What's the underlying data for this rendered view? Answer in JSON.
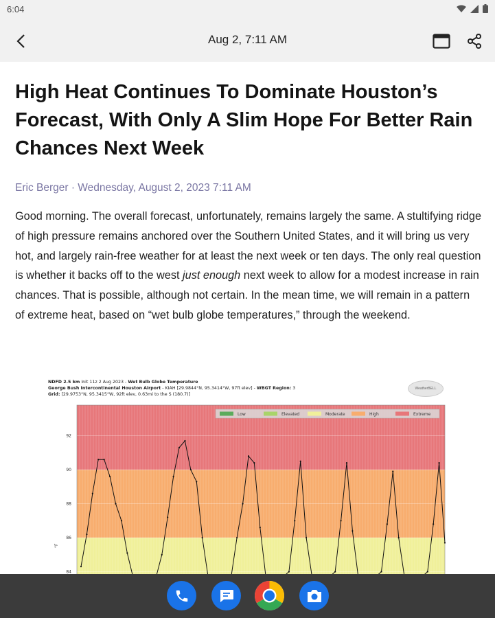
{
  "status": {
    "time": "6:04"
  },
  "app_bar": {
    "title": "Aug 2, 7:11 AM"
  },
  "article": {
    "headline": "High Heat Continues To Dominate Houston’s Forecast, With Only A Slim Hope For Better Rain Chances Next Week",
    "byline": "Eric Berger · Wednesday, August 2, 2023 7:11 AM",
    "p1": "Good morning. The overall forecast, unfortunately, remains largely the same. A stultifying ridge of high pressure remains anchored over the Southern United States, and it will bring us very hot, and largely rain-free weather for at least the next week or ten days. The only real question is whether it backs off to the west ",
    "p1_em": "just enough",
    "p1_end": " next week to allow for a modest increase in rain chances. That is possible, although not certain. In the mean time, we will remain in a pattern of extreme heat, based on “wet bulb globe temperatures,” through the weekend."
  },
  "figure": {
    "line1_bold": "NDFD 2.5 km",
    "line1_rest": " Init 11z 2 Aug 2023 - ",
    "line1_bold2": "Wet Bulb Globe Temperature",
    "line2_bold": "George Bush Intercontinental Houston Airport",
    "line2_rest": " - KIAH [29.9844°N, 95.3414°W, 97ft elev] - ",
    "line2_bold2": "WBGT Region:",
    "line2_end": " 3",
    "line3_bold": "Grid:",
    "line3_rest": " [29.9753°N, 95.3415°W, 92ft elev, 0.63mi to the S (180.7)]",
    "logo_text": "WeatherBELL"
  },
  "chart_data": {
    "type": "line",
    "ylabel": "°F",
    "y_ticks": [
      84,
      86,
      88,
      90,
      92
    ],
    "y_visible_range": [
      83.7,
      93.8
    ],
    "legend": [
      "Low",
      "Elevated",
      "Moderate",
      "High",
      "Extreme"
    ],
    "legend_position": "top-right",
    "colors": {
      "Low": "#5cab5c",
      "Elevated": "#a9d46a",
      "Moderate": "#f0f09a",
      "High": "#f8ad6e",
      "Extreme": "#e7777a",
      "line": "#111111"
    },
    "zones": [
      {
        "name": "Moderate",
        "from": 83.7,
        "to": 86
      },
      {
        "name": "High",
        "from": 86,
        "to": 90
      },
      {
        "name": "Extreme",
        "from": 90,
        "to": 93.8
      }
    ],
    "series": [
      {
        "values": [
          84.3,
          86.2,
          88.6,
          90.6,
          90.6,
          89.6,
          88.0,
          87.0,
          85.1,
          83.7,
          83.7,
          83.7,
          83.7,
          83.7,
          85.0,
          87.2,
          89.6,
          91.3,
          91.7,
          90.0,
          89.3,
          86.0,
          83.7,
          83.7,
          83.7,
          83.7,
          83.7,
          86.0,
          88.0,
          90.8,
          90.4,
          86.6,
          83.7,
          83.7,
          83.7,
          83.7,
          84.0,
          87.0,
          90.5,
          86.0,
          83.7,
          83.7,
          83.7,
          83.7,
          84.0,
          87.0,
          90.4,
          86.4,
          83.7,
          83.7,
          83.7,
          83.7,
          84.0,
          86.8,
          89.9,
          86.0,
          83.7,
          83.7,
          83.7,
          83.7,
          84.0,
          86.8,
          90.4,
          85.7
        ]
      }
    ]
  },
  "dock": [
    "phone-app",
    "messages-app",
    "chrome-app",
    "camera-app"
  ]
}
